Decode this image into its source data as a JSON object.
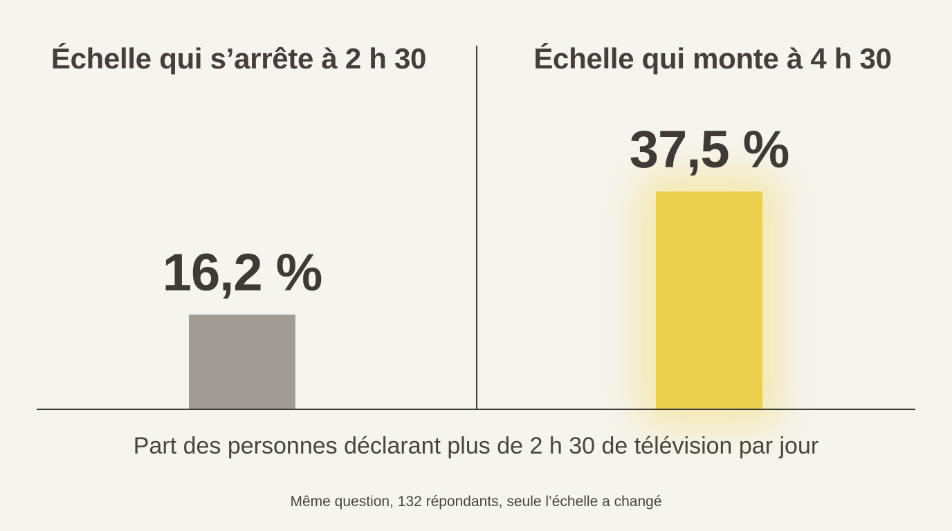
{
  "chart_data": {
    "type": "bar",
    "panels": [
      {
        "title": "Échelle qui s’arrête à 2 h 30",
        "value": 16.2,
        "value_label": "16,2 %",
        "color": "#a19c93"
      },
      {
        "title": "Échelle qui monte à 4 h 30",
        "value": 37.5,
        "value_label": "37,5 %",
        "color": "#ead04e",
        "highlight": "glow"
      }
    ],
    "ylim": [
      0,
      37.5
    ],
    "xlabel": "Part des personnes déclarant plus de 2 h 30 de télévision par jour",
    "footnote": "Même question, 132 répondants, seule l’échelle a changé",
    "grid": false
  }
}
